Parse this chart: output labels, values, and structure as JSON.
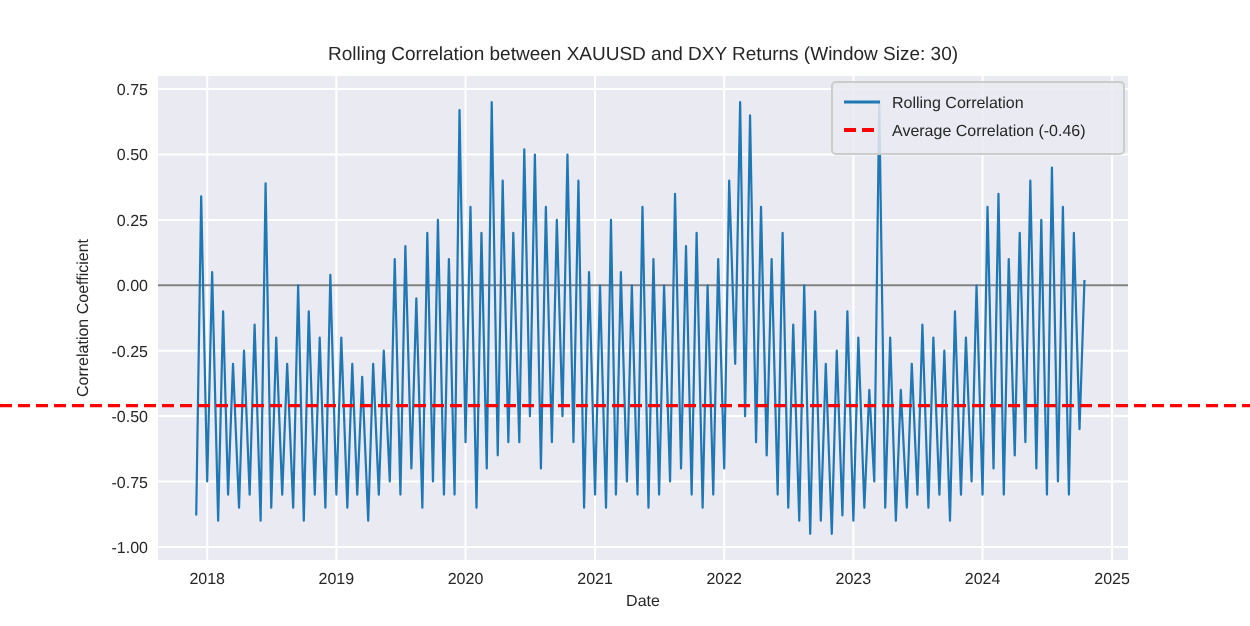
{
  "chart_data": {
    "type": "line",
    "title": "Rolling Correlation between XAUUSD and DXY Returns (Window Size: 30)",
    "xlabel": "Date",
    "ylabel": "Correlation Coefficient",
    "x": [
      "2017-12-01",
      "2017-12-15",
      "2018-01-01",
      "2018-01-15",
      "2018-02-01",
      "2018-02-15",
      "2018-03-01",
      "2018-03-15",
      "2018-04-01",
      "2018-04-15",
      "2018-05-01",
      "2018-05-15",
      "2018-06-01",
      "2018-06-15",
      "2018-07-01",
      "2018-07-15",
      "2018-08-01",
      "2018-08-15",
      "2018-09-01",
      "2018-09-15",
      "2018-10-01",
      "2018-10-15",
      "2018-11-01",
      "2018-11-15",
      "2018-12-01",
      "2018-12-15",
      "2019-01-01",
      "2019-01-15",
      "2019-02-01",
      "2019-02-15",
      "2019-03-01",
      "2019-03-15",
      "2019-04-01",
      "2019-04-15",
      "2019-05-01",
      "2019-05-15",
      "2019-06-01",
      "2019-06-15",
      "2019-07-01",
      "2019-07-15",
      "2019-08-01",
      "2019-08-15",
      "2019-09-01",
      "2019-09-15",
      "2019-10-01",
      "2019-10-15",
      "2019-11-01",
      "2019-11-15",
      "2019-12-01",
      "2019-12-15",
      "2020-01-01",
      "2020-01-15",
      "2020-02-01",
      "2020-02-15",
      "2020-03-01",
      "2020-03-15",
      "2020-04-01",
      "2020-04-15",
      "2020-05-01",
      "2020-05-15",
      "2020-06-01",
      "2020-06-15",
      "2020-07-01",
      "2020-07-15",
      "2020-08-01",
      "2020-08-15",
      "2020-09-01",
      "2020-09-15",
      "2020-10-01",
      "2020-10-15",
      "2020-11-01",
      "2020-11-15",
      "2020-12-01",
      "2020-12-15",
      "2021-01-01",
      "2021-01-15",
      "2021-02-01",
      "2021-02-15",
      "2021-03-01",
      "2021-03-15",
      "2021-04-01",
      "2021-04-15",
      "2021-05-01",
      "2021-05-15",
      "2021-06-01",
      "2021-06-15",
      "2021-07-01",
      "2021-07-15",
      "2021-08-01",
      "2021-08-15",
      "2021-09-01",
      "2021-09-15",
      "2021-10-01",
      "2021-10-15",
      "2021-11-01",
      "2021-11-15",
      "2021-12-01",
      "2021-12-15",
      "2022-01-01",
      "2022-01-15",
      "2022-02-01",
      "2022-02-15",
      "2022-03-01",
      "2022-03-15",
      "2022-04-01",
      "2022-04-15",
      "2022-05-01",
      "2022-05-15",
      "2022-06-01",
      "2022-06-15",
      "2022-07-01",
      "2022-07-15",
      "2022-08-01",
      "2022-08-15",
      "2022-09-01",
      "2022-09-15",
      "2022-10-01",
      "2022-10-15",
      "2022-11-01",
      "2022-11-15",
      "2022-12-01",
      "2022-12-15",
      "2023-01-01",
      "2023-01-15",
      "2023-02-01",
      "2023-02-15",
      "2023-03-01",
      "2023-03-15",
      "2023-04-01",
      "2023-04-15",
      "2023-05-01",
      "2023-05-15",
      "2023-06-01",
      "2023-06-15",
      "2023-07-01",
      "2023-07-15",
      "2023-08-01",
      "2023-08-15",
      "2023-09-01",
      "2023-09-15",
      "2023-10-01",
      "2023-10-15",
      "2023-11-01",
      "2023-11-15",
      "2023-12-01",
      "2023-12-15",
      "2024-01-01",
      "2024-01-15",
      "2024-02-01",
      "2024-02-15",
      "2024-03-01",
      "2024-03-15",
      "2024-04-01",
      "2024-04-15",
      "2024-05-01",
      "2024-05-15",
      "2024-06-01",
      "2024-06-15",
      "2024-07-01",
      "2024-07-15",
      "2024-08-01",
      "2024-08-15",
      "2024-09-01",
      "2024-09-15",
      "2024-10-01",
      "2024-10-15"
    ],
    "series": [
      {
        "name": "Rolling Correlation",
        "color": "#1f77b4",
        "values": [
          -0.88,
          0.34,
          -0.75,
          0.05,
          -0.9,
          -0.1,
          -0.8,
          -0.3,
          -0.85,
          -0.25,
          -0.8,
          -0.15,
          -0.9,
          0.39,
          -0.85,
          -0.2,
          -0.8,
          -0.3,
          -0.85,
          0.0,
          -0.9,
          -0.1,
          -0.8,
          -0.2,
          -0.85,
          0.04,
          -0.8,
          -0.2,
          -0.85,
          -0.3,
          -0.8,
          -0.35,
          -0.9,
          -0.3,
          -0.8,
          -0.25,
          -0.75,
          0.1,
          -0.8,
          0.15,
          -0.7,
          -0.05,
          -0.85,
          0.2,
          -0.75,
          0.25,
          -0.8,
          0.1,
          -0.8,
          0.67,
          -0.6,
          0.3,
          -0.85,
          0.2,
          -0.7,
          0.7,
          -0.65,
          0.4,
          -0.6,
          0.2,
          -0.6,
          0.52,
          -0.5,
          0.5,
          -0.7,
          0.3,
          -0.6,
          0.25,
          -0.5,
          0.5,
          -0.6,
          0.4,
          -0.85,
          0.05,
          -0.8,
          0.0,
          -0.85,
          0.25,
          -0.8,
          0.05,
          -0.75,
          0.0,
          -0.8,
          0.3,
          -0.85,
          0.1,
          -0.8,
          0.0,
          -0.75,
          0.35,
          -0.7,
          0.15,
          -0.8,
          0.2,
          -0.85,
          0.0,
          -0.8,
          0.1,
          -0.7,
          0.4,
          -0.3,
          0.7,
          -0.5,
          0.65,
          -0.6,
          0.3,
          -0.65,
          0.1,
          -0.8,
          0.2,
          -0.85,
          -0.15,
          -0.9,
          0.0,
          -0.95,
          -0.1,
          -0.9,
          -0.3,
          -0.95,
          -0.25,
          -0.88,
          -0.1,
          -0.9,
          -0.2,
          -0.85,
          -0.4,
          -0.75,
          0.7,
          -0.85,
          -0.2,
          -0.9,
          -0.4,
          -0.85,
          -0.3,
          -0.8,
          -0.15,
          -0.85,
          -0.2,
          -0.8,
          -0.25,
          -0.9,
          -0.1,
          -0.8,
          -0.2,
          -0.75,
          0.0,
          -0.8,
          0.3,
          -0.7,
          0.35,
          -0.8,
          0.1,
          -0.65,
          0.2,
          -0.6,
          0.4,
          -0.7,
          0.25,
          -0.8,
          0.45,
          -0.75,
          0.3,
          -0.8,
          0.2,
          -0.55,
          0.02
        ]
      }
    ],
    "ref_lines": [
      {
        "axis": "y",
        "value": 0,
        "color": "#808080",
        "line_style": "solid"
      },
      {
        "axis": "y",
        "value": -0.46,
        "label": "Average Correlation (-0.46)",
        "color": "#ff0000",
        "line_style": "dashed"
      }
    ],
    "xlim": [
      "2017-08-15",
      "2025-02-15"
    ],
    "xticks": [
      "2018",
      "2019",
      "2020",
      "2021",
      "2022",
      "2023",
      "2024",
      "2025"
    ],
    "ylim": [
      -1.05,
      0.8
    ],
    "yticks": [
      {
        "value": -1,
        "label": "-1.00"
      },
      -0.75,
      {
        "value": -0.5,
        "label": "-0.50"
      },
      -0.25,
      {
        "value": 0,
        "label": "0.00"
      },
      0.25,
      {
        "value": 0.5,
        "label": "0.50"
      },
      0.75
    ],
    "grid": true,
    "legend": "top right",
    "line_style": "solid",
    "marker": "none"
  }
}
